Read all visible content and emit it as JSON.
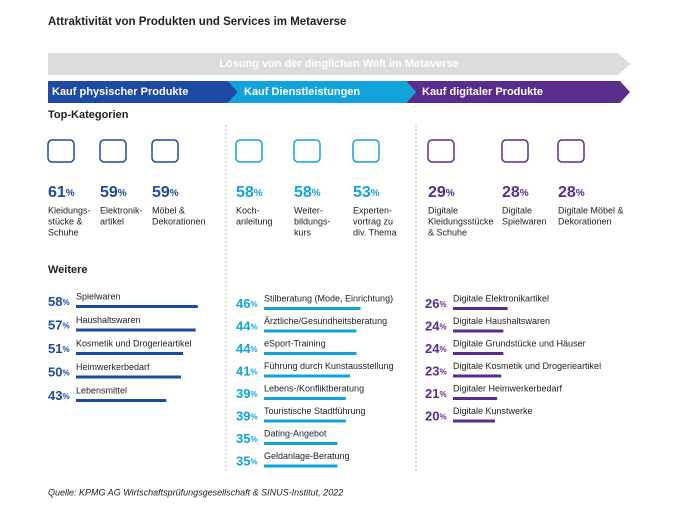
{
  "title": "Attraktivität von Produkten und Services im Metaverse",
  "banner": "Lösung von der dinglichen Welt im Metaverse",
  "unit": "%",
  "top_heading": "Top-Kategorien",
  "more_heading": "Weitere",
  "columns": [
    {
      "header": "Kauf physischer Produkte",
      "color": "#1d4aa2",
      "top": [
        {
          "value": 61,
          "label": [
            "Kleidungs-",
            "stücke &",
            "Schuhe"
          ]
        },
        {
          "value": 59,
          "label": [
            "Elektronik-",
            "artikel"
          ]
        },
        {
          "value": 59,
          "label": [
            "Möbel &",
            "Dekorationen"
          ]
        }
      ],
      "more": [
        {
          "value": 58,
          "label": "Spielwaren"
        },
        {
          "value": 57,
          "label": "Haushaltswaren"
        },
        {
          "value": 51,
          "label": "Kosmetik und Drogerieartikel"
        },
        {
          "value": 50,
          "label": "Heimwerkerbedarf"
        },
        {
          "value": 43,
          "label": "Lebensmittel"
        }
      ]
    },
    {
      "header": "Kauf Dienstleistungen",
      "color": "#13a3dc",
      "top": [
        {
          "value": 58,
          "label": [
            "Koch-",
            "anleitung"
          ]
        },
        {
          "value": 58,
          "label": [
            "Weiter-",
            "bildungs-",
            "kurs"
          ]
        },
        {
          "value": 53,
          "label": [
            "Experten-",
            "vortrag zu",
            "div. Thema"
          ]
        }
      ],
      "more": [
        {
          "value": 46,
          "label": "Stilberatung (Mode, Einrichtung)"
        },
        {
          "value": 44,
          "label": "Ärztliche/Gesundheitsberatung"
        },
        {
          "value": 44,
          "label": "eSport-Training"
        },
        {
          "value": 41,
          "label": "Führung durch Kunstausstellung"
        },
        {
          "value": 39,
          "label": "Lebens-/Konfliktberatung"
        },
        {
          "value": 39,
          "label": "Touristische Stadtführung"
        },
        {
          "value": 35,
          "label": "Dating-Angebot"
        },
        {
          "value": 35,
          "label": "Geldanlage-Beratung"
        }
      ]
    },
    {
      "header": "Kauf digitaler Produkte",
      "color": "#5a2d8c",
      "top": [
        {
          "value": 29,
          "label": [
            "Digitale",
            "Kleidungsstücke",
            "& Schuhe"
          ]
        },
        {
          "value": 28,
          "label": [
            "Digitale",
            "Spielwaren"
          ]
        },
        {
          "value": 28,
          "label": [
            "Digitale Möbel &",
            "Dekorationen"
          ]
        }
      ],
      "more": [
        {
          "value": 26,
          "label": "Digitale Elektronikartikel"
        },
        {
          "value": 24,
          "label": "Digitale Haushaltswaren"
        },
        {
          "value": 24,
          "label": "Digitale Grundstücke und Häuser"
        },
        {
          "value": 23,
          "label": "Digitale Kosmetik und Drogerieartikel"
        },
        {
          "value": 21,
          "label": "Digitaler Heimwerkerbedarf"
        },
        {
          "value": 20,
          "label": "Digitale Kunstwerke"
        }
      ]
    }
  ],
  "source": "Quelle: KPMG AG Wirtschaftsprüfungsgesellschaft & SINUS-Institut, 2022"
}
